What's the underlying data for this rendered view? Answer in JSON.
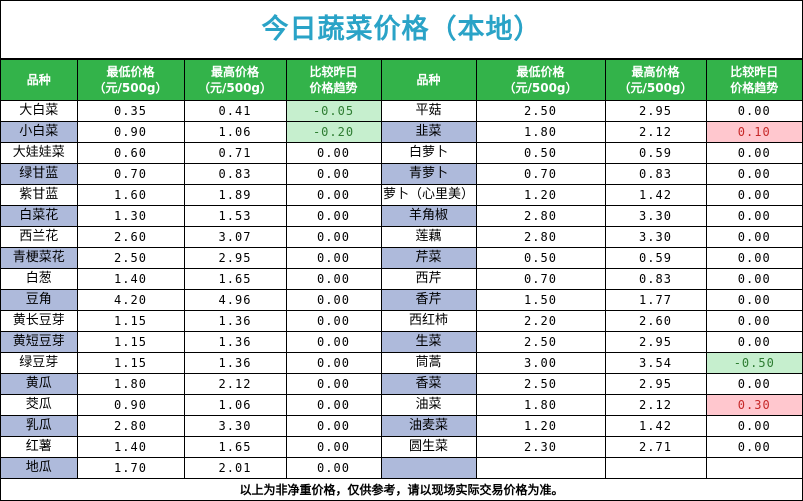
{
  "title": "今日蔬菜价格（本地）",
  "headers": [
    "品种",
    "最低价格\n（元/500g）",
    "最高价格\n（元/500g）",
    "比较昨日\n价格趋势",
    "品种",
    "最低价格\n（元/500g）",
    "最高价格\n（元/500g）",
    "比较昨日\n价格趋势"
  ],
  "rows": [
    {
      "left": [
        "大白菜",
        "0.35",
        "0.41",
        "-0.05"
      ],
      "right": [
        "平菇",
        "2.50",
        "2.95",
        "0.00"
      ]
    },
    {
      "left": [
        "小白菜",
        "0.90",
        "1.06",
        "-0.20"
      ],
      "right": [
        "韭菜",
        "1.80",
        "2.12",
        "0.10"
      ]
    },
    {
      "left": [
        "大娃娃菜",
        "0.60",
        "0.71",
        "0.00"
      ],
      "right": [
        "白萝卜",
        "0.50",
        "0.59",
        "0.00"
      ]
    },
    {
      "left": [
        "绿甘蓝",
        "0.70",
        "0.83",
        "0.00"
      ],
      "right": [
        "青萝卜",
        "0.70",
        "0.83",
        "0.00"
      ]
    },
    {
      "left": [
        "紫甘蓝",
        "1.60",
        "1.89",
        "0.00"
      ],
      "right": [
        "萝卜（心里美）",
        "1.20",
        "1.42",
        "0.00"
      ]
    },
    {
      "left": [
        "白菜花",
        "1.30",
        "1.53",
        "0.00"
      ],
      "right": [
        "羊角椒",
        "2.80",
        "3.30",
        "0.00"
      ]
    },
    {
      "left": [
        "西兰花",
        "2.60",
        "3.07",
        "0.00"
      ],
      "right": [
        "莲藕",
        "2.80",
        "3.30",
        "0.00"
      ]
    },
    {
      "left": [
        "青梗菜花",
        "2.50",
        "2.95",
        "0.00"
      ],
      "right": [
        "芹菜",
        "0.50",
        "0.59",
        "0.00"
      ]
    },
    {
      "left": [
        "白葱",
        "1.40",
        "1.65",
        "0.00"
      ],
      "right": [
        "西芹",
        "0.70",
        "0.83",
        "0.00"
      ]
    },
    {
      "left": [
        "豆角",
        "4.20",
        "4.96",
        "0.00"
      ],
      "right": [
        "香芹",
        "1.50",
        "1.77",
        "0.00"
      ]
    },
    {
      "left": [
        "黄长豆芽",
        "1.15",
        "1.36",
        "0.00"
      ],
      "right": [
        "西红柿",
        "2.20",
        "2.60",
        "0.00"
      ]
    },
    {
      "left": [
        "黄短豆芽",
        "1.15",
        "1.36",
        "0.00"
      ],
      "right": [
        "生菜",
        "2.50",
        "2.95",
        "0.00"
      ]
    },
    {
      "left": [
        "绿豆芽",
        "1.15",
        "1.36",
        "0.00"
      ],
      "right": [
        "茼蒿",
        "3.00",
        "3.54",
        "-0.50"
      ]
    },
    {
      "left": [
        "黄瓜",
        "1.80",
        "2.12",
        "0.00"
      ],
      "right": [
        "香菜",
        "2.50",
        "2.95",
        "0.00"
      ]
    },
    {
      "left": [
        "茭瓜",
        "0.90",
        "1.06",
        "0.00"
      ],
      "right": [
        "油菜",
        "1.80",
        "2.12",
        "0.30"
      ]
    },
    {
      "left": [
        "乳瓜",
        "2.80",
        "3.30",
        "0.00"
      ],
      "right": [
        "油麦菜",
        "1.20",
        "1.42",
        "0.00"
      ]
    },
    {
      "left": [
        "红薯",
        "1.40",
        "1.65",
        "0.00"
      ],
      "right": [
        "圆生菜",
        "2.30",
        "2.71",
        "0.00"
      ]
    },
    {
      "left": [
        "地瓜",
        "1.70",
        "2.01",
        "0.00"
      ],
      "right": [
        "",
        "",
        "",
        ""
      ]
    }
  ],
  "footer": "以上为非净重价格，仅供参考，请以现场实际交易价格为准。",
  "colors": {
    "title": "#2aa3c7",
    "header_bg": "#33b34a",
    "alt_row": "#aebadb",
    "down_bg": "#c6efce",
    "up_bg": "#ffc7ce"
  }
}
